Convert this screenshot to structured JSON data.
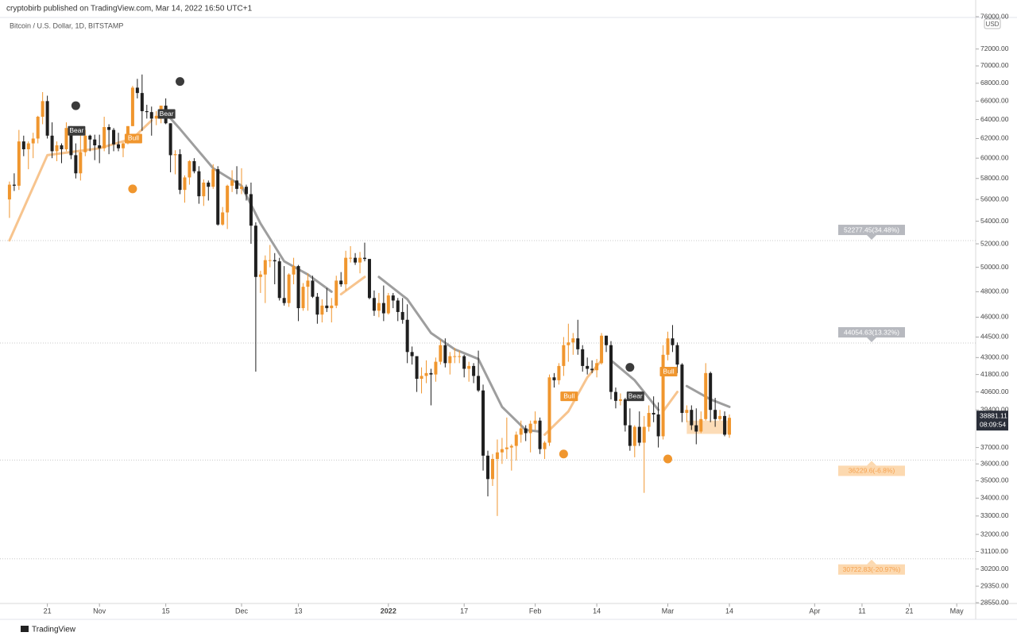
{
  "header": {
    "publisher": "cryptobirb published on TradingView.com, Mar 14, 2022 16:50 UTC+1",
    "footer": "TradingView"
  },
  "chart_data": {
    "type": "candlestick",
    "title": "Bitcoin / U.S. Dollar, 1D, BITSTAMP",
    "currency": "USD",
    "countdown": "08:09:54",
    "log_scale": true,
    "up_color": "#f0962e",
    "down_color": "#1f1f1f",
    "xlim": [
      "2021-10-11",
      "2022-05-05"
    ],
    "ylim": [
      28550,
      76000
    ],
    "yticks": [
      {
        "value": 76000,
        "label": "76000.00"
      },
      {
        "value": 72000,
        "label": "72000.00"
      },
      {
        "value": 70000,
        "label": "70000.00"
      },
      {
        "value": 68000,
        "label": "68000.00"
      },
      {
        "value": 66000,
        "label": "66000.00"
      },
      {
        "value": 64000,
        "label": "64000.00"
      },
      {
        "value": 62000,
        "label": "62000.00"
      },
      {
        "value": 60000,
        "label": "60000.00"
      },
      {
        "value": 58000,
        "label": "58000.00"
      },
      {
        "value": 56000,
        "label": "56000.00"
      },
      {
        "value": 54000,
        "label": "54000.00"
      },
      {
        "value": 52000,
        "label": "52000.00"
      },
      {
        "value": 50000,
        "label": "50000.00"
      },
      {
        "value": 48000,
        "label": "48000.00"
      },
      {
        "value": 46000,
        "label": "46000.00"
      },
      {
        "value": 44500,
        "label": "44500.00"
      },
      {
        "value": 43000,
        "label": "43000.00"
      },
      {
        "value": 41800,
        "label": "41800.00"
      },
      {
        "value": 40600,
        "label": "40600.00"
      },
      {
        "value": 39400,
        "label": "39400.00"
      },
      {
        "value": 37000,
        "label": "37000.00"
      },
      {
        "value": 36000,
        "label": "36000.00"
      },
      {
        "value": 35000,
        "label": "35000.00"
      },
      {
        "value": 34000,
        "label": "34000.00"
      },
      {
        "value": 33000,
        "label": "33000.00"
      },
      {
        "value": 32000,
        "label": "32000.00"
      },
      {
        "value": 31100,
        "label": "31100.00"
      },
      {
        "value": 30200,
        "label": "30200.00"
      },
      {
        "value": 29350,
        "label": "29350.00"
      },
      {
        "value": 28550,
        "label": "28550.00"
      }
    ],
    "xticks": [
      {
        "value": "2021-10-21",
        "label": "21"
      },
      {
        "value": "2021-11-01",
        "label": "Nov"
      },
      {
        "value": "2021-11-15",
        "label": "15"
      },
      {
        "value": "2021-12-01",
        "label": "Dec"
      },
      {
        "value": "2021-12-13",
        "label": "13"
      },
      {
        "value": "2022-01-01",
        "label": "2022"
      },
      {
        "value": "2022-01-17",
        "label": "17"
      },
      {
        "value": "2022-02-01",
        "label": "Feb"
      },
      {
        "value": "2022-02-14",
        "label": "14"
      },
      {
        "value": "2022-03-01",
        "label": "Mar"
      },
      {
        "value": "2022-03-14",
        "label": "14"
      },
      {
        "value": "2022-04-01",
        "label": "Apr"
      },
      {
        "value": "2022-04-11",
        "label": "11"
      },
      {
        "value": "2022-04-21",
        "label": "21"
      },
      {
        "value": "2022-05-01",
        "label": "May"
      }
    ],
    "x": [
      "2021-10-13",
      "2021-10-14",
      "2021-10-15",
      "2021-10-16",
      "2021-10-17",
      "2021-10-18",
      "2021-10-19",
      "2021-10-20",
      "2021-10-21",
      "2021-10-22",
      "2021-10-23",
      "2021-10-24",
      "2021-10-25",
      "2021-10-26",
      "2021-10-27",
      "2021-10-28",
      "2021-10-29",
      "2021-10-30",
      "2021-10-31",
      "2021-11-01",
      "2021-11-02",
      "2021-11-03",
      "2021-11-04",
      "2021-11-05",
      "2021-11-06",
      "2021-11-07",
      "2021-11-08",
      "2021-11-09",
      "2021-11-10",
      "2021-11-11",
      "2021-11-12",
      "2021-11-13",
      "2021-11-14",
      "2021-11-15",
      "2021-11-16",
      "2021-11-17",
      "2021-11-18",
      "2021-11-19",
      "2021-11-20",
      "2021-11-21",
      "2021-11-22",
      "2021-11-23",
      "2021-11-24",
      "2021-11-25",
      "2021-11-26",
      "2021-11-27",
      "2021-11-28",
      "2021-11-29",
      "2021-11-30",
      "2021-12-01",
      "2021-12-02",
      "2021-12-03",
      "2021-12-04",
      "2021-12-05",
      "2021-12-06",
      "2021-12-07",
      "2021-12-08",
      "2021-12-09",
      "2021-12-10",
      "2021-12-11",
      "2021-12-12",
      "2021-12-13",
      "2021-12-14",
      "2021-12-15",
      "2021-12-16",
      "2021-12-17",
      "2021-12-18",
      "2021-12-19",
      "2021-12-20",
      "2021-12-21",
      "2021-12-22",
      "2021-12-23",
      "2021-12-24",
      "2021-12-25",
      "2021-12-26",
      "2021-12-27",
      "2021-12-28",
      "2021-12-29",
      "2021-12-30",
      "2021-12-31",
      "2022-01-01",
      "2022-01-02",
      "2022-01-03",
      "2022-01-04",
      "2022-01-05",
      "2022-01-06",
      "2022-01-07",
      "2022-01-08",
      "2022-01-09",
      "2022-01-10",
      "2022-01-11",
      "2022-01-12",
      "2022-01-13",
      "2022-01-14",
      "2022-01-15",
      "2022-01-16",
      "2022-01-17",
      "2022-01-18",
      "2022-01-19",
      "2022-01-20",
      "2022-01-21",
      "2022-01-22",
      "2022-01-23",
      "2022-01-24",
      "2022-01-25",
      "2022-01-26",
      "2022-01-27",
      "2022-01-28",
      "2022-01-29",
      "2022-01-30",
      "2022-01-31",
      "2022-02-01",
      "2022-02-02",
      "2022-02-03",
      "2022-02-04",
      "2022-02-05",
      "2022-02-06",
      "2022-02-07",
      "2022-02-08",
      "2022-02-09",
      "2022-02-10",
      "2022-02-11",
      "2022-02-12",
      "2022-02-13",
      "2022-02-14",
      "2022-02-15",
      "2022-02-16",
      "2022-02-17",
      "2022-02-18",
      "2022-02-19",
      "2022-02-20",
      "2022-02-21",
      "2022-02-22",
      "2022-02-23",
      "2022-02-24",
      "2022-02-25",
      "2022-02-26",
      "2022-02-27",
      "2022-02-28",
      "2022-03-01",
      "2022-03-02",
      "2022-03-03",
      "2022-03-04",
      "2022-03-05",
      "2022-03-06",
      "2022-03-07",
      "2022-03-08",
      "2022-03-09",
      "2022-03-10",
      "2022-03-11",
      "2022-03-12",
      "2022-03-13",
      "2022-03-14"
    ],
    "open": [
      56000,
      57400,
      57300,
      61700,
      60900,
      61500,
      62000,
      64300,
      66000,
      62300,
      60700,
      61300,
      60900,
      63100,
      60300,
      58500,
      60600,
      62300,
      61900,
      61300,
      61000,
      63200,
      62900,
      61400,
      61000,
      61500,
      63300,
      67500,
      66900,
      64900,
      64800,
      64100,
      64400,
      65500,
      63600,
      60300,
      60400,
      56900,
      58100,
      59700,
      58700,
      56300,
      57600,
      57200,
      58900,
      53700,
      54800,
      57300,
      57800,
      57000,
      57200,
      56500,
      53600,
      49200,
      49400,
      50600,
      50600,
      50500,
      47500,
      47100,
      49400,
      50100,
      46700,
      48400,
      48900,
      47600,
      46200,
      46900,
      46700,
      46900,
      48900,
      48600,
      50800,
      50800,
      50400,
      50800,
      50700,
      47500,
      46500,
      47100,
      46300,
      47700,
      47300,
      46400,
      45800,
      43400,
      43100,
      41500,
      41700,
      41900,
      41800,
      42700,
      43900,
      42600,
      43100,
      43100,
      43100,
      42200,
      42400,
      41700,
      40700,
      36500,
      35100,
      36300,
      36700,
      36900,
      37000,
      37100,
      37800,
      38200,
      37900,
      38500,
      38700,
      36900,
      37300,
      41600,
      41400,
      42400,
      43900,
      44100,
      44400,
      43600,
      42400,
      42200,
      42100,
      42600,
      44600,
      43900,
      40600,
      40000,
      40100,
      38400,
      37100,
      38300,
      37300,
      38300,
      39200,
      39100,
      37700,
      43200,
      44400,
      43900,
      42500,
      39200,
      39400,
      38400,
      38000,
      38800,
      41900,
      39400,
      38800,
      39000,
      37800
    ],
    "high": [
      57700,
      58500,
      62900,
      62300,
      61700,
      62600,
      64400,
      67000,
      66600,
      63700,
      61700,
      61500,
      63700,
      63300,
      61500,
      62500,
      62900,
      62400,
      62400,
      62400,
      64300,
      63500,
      63100,
      62600,
      61600,
      63300,
      67700,
      68500,
      69000,
      65600,
      65400,
      64900,
      65500,
      66300,
      63600,
      60800,
      60900,
      58300,
      59800,
      60000,
      59200,
      57900,
      57800,
      59400,
      59200,
      55300,
      57400,
      58800,
      59200,
      59000,
      57400,
      57600,
      53900,
      49700,
      51000,
      51900,
      51200,
      50800,
      50100,
      49500,
      50800,
      50200,
      48700,
      49500,
      49300,
      47900,
      47400,
      48300,
      47500,
      49300,
      49600,
      51400,
      51800,
      51200,
      51300,
      52100,
      50700,
      48100,
      47900,
      48500,
      47900,
      47900,
      47500,
      47500,
      47000,
      43800,
      43100,
      42300,
      42800,
      42200,
      43000,
      44300,
      44400,
      43400,
      43700,
      43500,
      43200,
      42700,
      42600,
      43500,
      41100,
      36800,
      36600,
      37500,
      37600,
      38900,
      37200,
      38000,
      38700,
      38400,
      38700,
      39300,
      38900,
      37400,
      41800,
      41900,
      42600,
      44500,
      45500,
      44800,
      45800,
      43900,
      43000,
      42800,
      42900,
      44800,
      44600,
      44200,
      40900,
      40500,
      40200,
      39500,
      38400,
      39300,
      39000,
      39700,
      40300,
      39900,
      43900,
      44900,
      45400,
      44100,
      42600,
      39700,
      39700,
      39500,
      39300,
      42600,
      42000,
      40200,
      39400,
      39300,
      39100
    ],
    "low": [
      54300,
      56800,
      56900,
      60200,
      58900,
      60000,
      61500,
      63500,
      62000,
      60000,
      59700,
      59500,
      60700,
      59900,
      58000,
      57800,
      60200,
      60700,
      59800,
      59500,
      60700,
      60400,
      60700,
      60700,
      60100,
      61400,
      63300,
      66300,
      62800,
      64100,
      62300,
      63400,
      63600,
      63500,
      58600,
      58400,
      56500,
      55700,
      57400,
      58500,
      55600,
      55400,
      55900,
      57000,
      53600,
      53600,
      53300,
      56700,
      56500,
      56500,
      55900,
      52000,
      42000,
      47900,
      47100,
      50000,
      48600,
      47300,
      46900,
      46800,
      48600,
      45700,
      46500,
      46500,
      47500,
      45500,
      45600,
      46400,
      45600,
      46700,
      48400,
      48100,
      50400,
      50200,
      49500,
      50500,
      47400,
      46100,
      46000,
      45700,
      46200,
      46700,
      45700,
      45500,
      42600,
      42500,
      40600,
      40500,
      41200,
      39700,
      41300,
      42500,
      42300,
      41800,
      42600,
      42600,
      41600,
      41300,
      41200,
      40600,
      35600,
      34100,
      34700,
      33000,
      36000,
      36300,
      35600,
      36200,
      37300,
      37400,
      36700,
      38100,
      36600,
      36300,
      37100,
      40900,
      41100,
      41700,
      42700,
      43200,
      43200,
      42000,
      41800,
      41900,
      41600,
      42500,
      43400,
      40100,
      39500,
      39700,
      38000,
      36800,
      36400,
      37100,
      34300,
      38000,
      38600,
      37000,
      37500,
      42800,
      43400,
      41900,
      38600,
      38600,
      38100,
      37200,
      37900,
      38700,
      38600,
      38300,
      38700,
      37700,
      37600
    ],
    "close": [
      57400,
      57300,
      61700,
      60900,
      61500,
      62000,
      64300,
      66000,
      62300,
      60700,
      61300,
      60900,
      63100,
      60300,
      58500,
      60600,
      62300,
      61900,
      61300,
      61000,
      63200,
      62900,
      61400,
      61000,
      61500,
      63300,
      67500,
      66900,
      64900,
      64800,
      64100,
      64400,
      65500,
      63600,
      60300,
      60400,
      56900,
      58100,
      59700,
      58700,
      56300,
      57600,
      57200,
      58900,
      53700,
      54800,
      57300,
      57800,
      57000,
      57200,
      56500,
      53600,
      49200,
      49400,
      50600,
      50600,
      50500,
      47500,
      47100,
      49400,
      50100,
      46700,
      48400,
      48900,
      47600,
      46200,
      46900,
      46700,
      46900,
      48900,
      48600,
      50800,
      50800,
      50400,
      50800,
      50700,
      47500,
      46500,
      47100,
      46300,
      47700,
      47300,
      46400,
      45800,
      43400,
      43100,
      41500,
      41700,
      41900,
      41800,
      42700,
      43900,
      42600,
      43100,
      43100,
      43100,
      42200,
      42400,
      41700,
      40700,
      36500,
      35100,
      36300,
      36700,
      36900,
      37000,
      37100,
      37800,
      38200,
      37900,
      38500,
      38700,
      36900,
      37300,
      41600,
      41400,
      42400,
      43900,
      44100,
      44400,
      43600,
      42400,
      42200,
      42100,
      42600,
      44600,
      43900,
      40600,
      40000,
      40100,
      38400,
      37100,
      38300,
      37300,
      38300,
      39200,
      39100,
      37700,
      43200,
      44400,
      43900,
      42500,
      39200,
      39400,
      38400,
      38000,
      38800,
      41900,
      39400,
      38800,
      39000,
      37800,
      38881.11
    ],
    "lines": [
      {
        "color": "#f7c48e",
        "x": [
          "2021-10-13",
          "2021-10-21",
          "2021-11-01",
          "2021-11-08",
          "2021-11-12"
        ],
        "values": [
          52300,
          60300,
          61000,
          62000,
          63900
        ]
      },
      {
        "color": "#9e9e9e",
        "x": [
          "2021-11-15",
          "2021-11-18",
          "2021-11-25",
          "2021-12-01",
          "2021-12-05",
          "2021-12-10",
          "2021-12-15",
          "2021-12-20"
        ],
        "values": [
          64700,
          63000,
          59000,
          57300,
          53800,
          50500,
          49400,
          48000
        ]
      },
      {
        "color": "#f7c48e",
        "x": [
          "2021-12-22",
          "2021-12-27"
        ],
        "values": [
          47800,
          49200
        ]
      },
      {
        "color": "#9e9e9e",
        "x": [
          "2021-12-30",
          "2022-01-05",
          "2022-01-10",
          "2022-01-15",
          "2022-01-20",
          "2022-01-25",
          "2022-01-30",
          "2022-02-02"
        ],
        "values": [
          49200,
          47400,
          44800,
          43600,
          42900,
          39600,
          38100,
          38000
        ]
      },
      {
        "color": "#f7c48e",
        "x": [
          "2022-02-03",
          "2022-02-08",
          "2022-02-12",
          "2022-02-15"
        ],
        "values": [
          37800,
          39300,
          41600,
          42800
        ]
      },
      {
        "color": "#9e9e9e",
        "x": [
          "2022-02-17",
          "2022-02-22",
          "2022-02-27"
        ],
        "values": [
          42800,
          41400,
          39400
        ]
      },
      {
        "color": "#f7c48e",
        "x": [
          "2022-02-28",
          "2022-03-03"
        ],
        "values": [
          39300,
          40600
        ]
      },
      {
        "color": "#9e9e9e",
        "x": [
          "2022-03-05",
          "2022-03-10",
          "2022-03-14"
        ],
        "values": [
          41000,
          40100,
          39600
        ]
      }
    ],
    "dots": [
      {
        "x": "2021-10-27",
        "y": 65500,
        "color": "#3b3b3b"
      },
      {
        "x": "2021-11-18",
        "y": 68200,
        "color": "#3b3b3b"
      },
      {
        "x": "2022-02-21",
        "y": 42300,
        "color": "#3b3b3b"
      },
      {
        "x": "2021-11-08",
        "y": 57000,
        "color": "#f0962e"
      },
      {
        "x": "2022-02-07",
        "y": 36600,
        "color": "#f0962e"
      },
      {
        "x": "2022-03-01",
        "y": 36300,
        "color": "#f0962e"
      }
    ],
    "annotations": [
      {
        "text": "Bear",
        "x": "2021-10-27",
        "y": 62800,
        "color": "#3b3b3b"
      },
      {
        "text": "Bull",
        "x": "2021-11-08",
        "y": 62000,
        "color": "#f0962e"
      },
      {
        "text": "Bear",
        "x": "2021-11-15",
        "y": 64600,
        "color": "#3b3b3b"
      },
      {
        "text": "Bull",
        "x": "2022-02-08",
        "y": 40300,
        "color": "#f0962e"
      },
      {
        "text": "Bear",
        "x": "2022-02-22",
        "y": 40300,
        "color": "#3b3b3b"
      },
      {
        "text": "Bull",
        "x": "2022-03-01",
        "y": 42000,
        "color": "#f0962e"
      }
    ],
    "levels": [
      {
        "value": 52277.45,
        "label": "52277.45(34.48%)",
        "color": "#b7b9bf"
      },
      {
        "value": 44054.63,
        "label": "44054.63(13.32%)",
        "color": "#b7b9bf"
      },
      {
        "value": 36229.6,
        "label": "36229.6(-6.8%)",
        "color": "#fcd9b0"
      },
      {
        "value": 30722.83,
        "label": "30722.83(-20.97%)",
        "color": "#fcd9b0"
      }
    ],
    "zone": {
      "x": [
        "2022-03-05",
        "2022-03-14"
      ],
      "values": [
        37850,
        38700
      ],
      "color": "#fbd3a5"
    }
  }
}
